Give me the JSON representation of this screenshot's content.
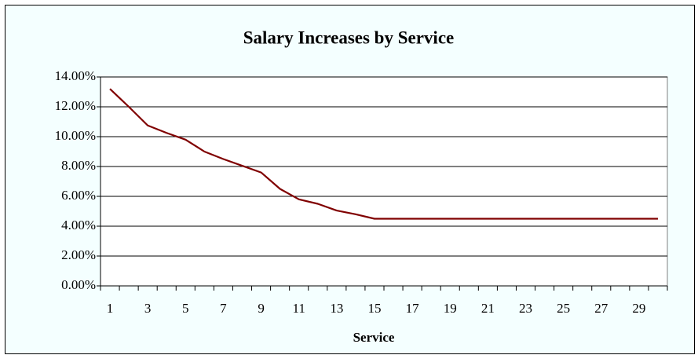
{
  "chart_data": {
    "type": "line",
    "title": "Salary Increases by Service",
    "x_label": "Service",
    "categories": [
      "1",
      null,
      "3",
      null,
      "5",
      null,
      "7",
      null,
      "9",
      null,
      "11",
      null,
      "13",
      null,
      "15",
      null,
      "17",
      null,
      "19",
      null,
      "21",
      null,
      "23",
      null,
      "25",
      null,
      "27",
      null,
      "29",
      null
    ],
    "series": [
      {
        "name": "Salary Increase",
        "color": "#800000",
        "values": [
          13.2,
          12.0,
          10.75,
          10.25,
          9.8,
          9.0,
          8.5,
          8.05,
          7.6,
          6.5,
          5.8,
          5.5,
          5.05,
          4.8,
          4.5,
          4.5,
          4.5,
          4.5,
          4.5,
          4.5,
          4.5,
          4.5,
          4.5,
          4.5,
          4.5,
          4.5,
          4.5,
          4.5,
          4.5,
          4.5
        ]
      }
    ],
    "ylim": [
      0,
      14
    ],
    "yticks": [
      {
        "value": 0,
        "label": "0.00%"
      },
      {
        "value": 2,
        "label": "2.00%"
      },
      {
        "value": 4,
        "label": "4.00%"
      },
      {
        "value": 6,
        "label": "6.00%"
      },
      {
        "value": 8,
        "label": "8.00%"
      },
      {
        "value": 10,
        "label": "10.00%"
      },
      {
        "value": 12,
        "label": "12.00%"
      },
      {
        "value": 14,
        "label": "14.00%"
      }
    ],
    "grid": true
  }
}
